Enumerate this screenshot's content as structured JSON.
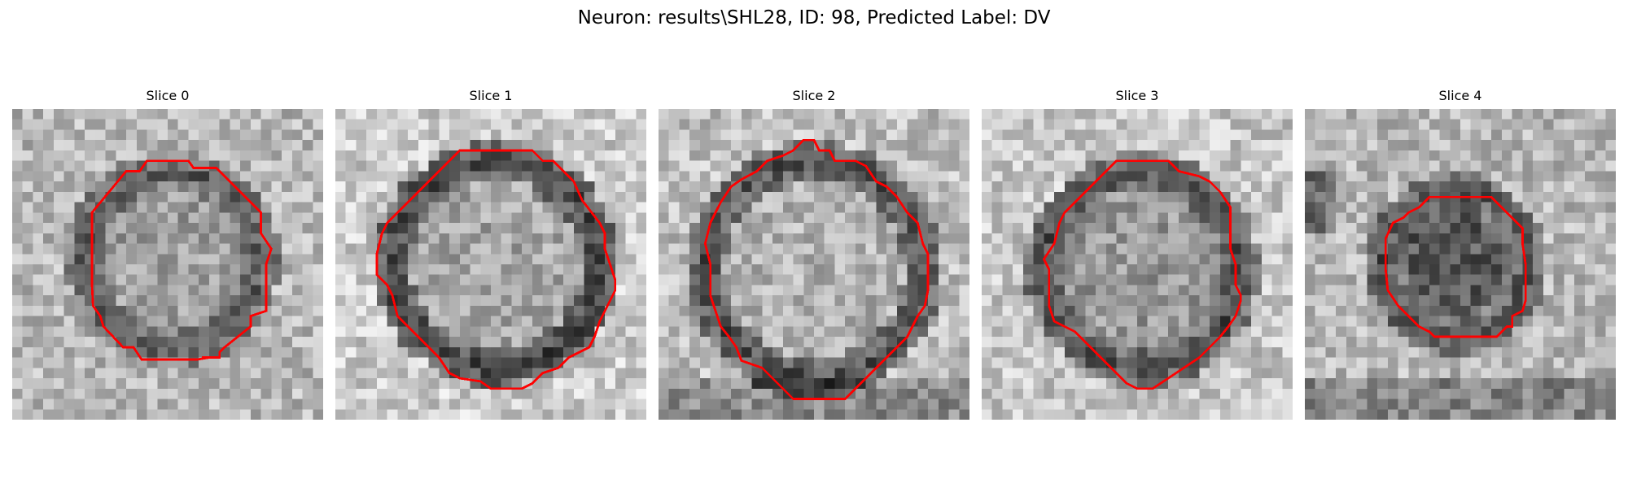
{
  "figure": {
    "title": "Neuron: results\\SHL28, ID: 98, Predicted Label: DV"
  },
  "panels": [
    {
      "title": "Slice 0"
    },
    {
      "title": "Slice 1"
    },
    {
      "title": "Slice 2"
    },
    {
      "title": "Slice 3"
    },
    {
      "title": "Slice 4"
    }
  ],
  "colors": {
    "contour": "#ff0000",
    "background": "#ffffff"
  }
}
